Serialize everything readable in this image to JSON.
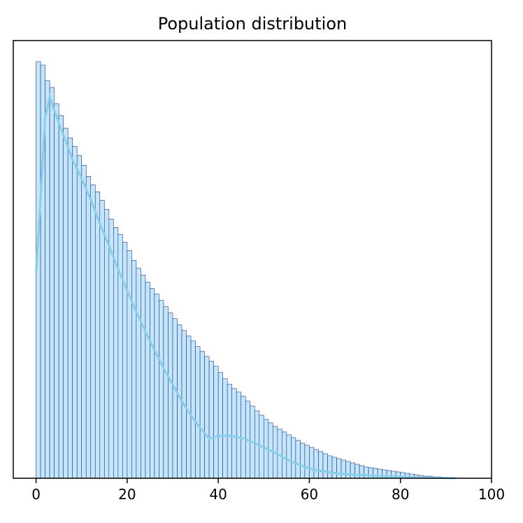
{
  "chart_data": {
    "type": "histogram",
    "title": "Population distribution",
    "xlabel": "",
    "ylabel": "",
    "xlim": [
      -5,
      100
    ],
    "xticks": [
      0,
      20,
      40,
      60,
      80,
      100
    ],
    "yticks_visible": false,
    "bin_width": 1,
    "bin_start": 0,
    "counts": [
      595,
      590,
      568,
      558,
      535,
      518,
      500,
      486,
      474,
      461,
      447,
      431,
      419,
      409,
      397,
      384,
      370,
      358,
      348,
      337,
      325,
      311,
      300,
      290,
      280,
      271,
      263,
      254,
      245,
      236,
      228,
      219,
      211,
      203,
      196,
      188,
      181,
      174,
      167,
      160,
      151,
      142,
      134,
      128,
      123,
      117,
      110,
      103,
      96,
      90,
      84,
      79,
      74,
      70,
      66,
      62,
      58,
      54,
      50,
      47,
      44,
      41,
      38,
      35,
      32,
      30,
      28,
      26,
      24,
      22,
      20,
      18,
      16,
      15,
      14,
      13,
      12,
      11,
      10,
      9,
      8,
      7,
      6,
      5,
      4,
      3,
      3,
      2,
      2,
      1,
      1,
      1
    ],
    "kde": {
      "x": [
        0,
        1,
        2,
        3,
        4,
        6,
        8,
        10,
        12,
        14,
        16,
        18,
        20,
        22,
        24,
        26,
        28,
        30,
        32,
        34,
        36,
        38,
        40,
        42,
        44,
        46,
        48,
        50,
        52,
        54,
        56,
        58,
        60,
        62,
        64,
        66,
        70,
        75,
        80,
        85,
        90,
        92
      ],
      "y": [
        295,
        400,
        515,
        545,
        525,
        490,
        455,
        428,
        398,
        364,
        332,
        299,
        268,
        238,
        210,
        183,
        157,
        134,
        110,
        90,
        72,
        57,
        60,
        61,
        59,
        56,
        50,
        44,
        38,
        31,
        24,
        19,
        14,
        11,
        9,
        7,
        5,
        3,
        2,
        1,
        0.4,
        0.2
      ]
    },
    "colors": {
      "bar_fill": "#c5e6fa",
      "bar_edge": "#1a3a8f",
      "kde_line": "#87ceeb"
    },
    "grid": false,
    "legend": "none"
  }
}
